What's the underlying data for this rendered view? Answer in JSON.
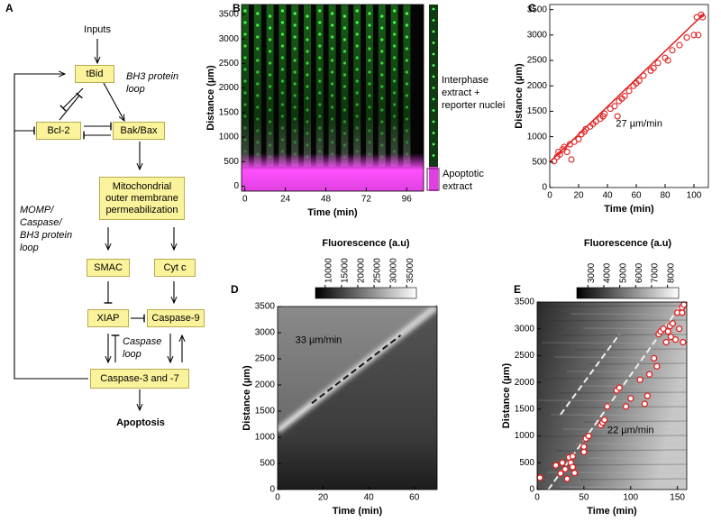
{
  "panel_labels": [
    "A",
    "B",
    "C",
    "D",
    "E"
  ],
  "diagram": {
    "nodes": [
      "Inputs",
      "tBid",
      "Bcl-2",
      "Bak/Bax",
      "Mitochondrial outer membrane permeabilization",
      "SMAC",
      "Cyt c",
      "XIAP",
      "Caspase-9",
      "Caspase-3 and -7",
      "Apoptosis"
    ],
    "loops": [
      "BH3 protein loop",
      "MOMP/ Caspase/ BH3 protein loop",
      "Caspase loop"
    ]
  },
  "chart_data": [
    {
      "type": "image",
      "x_label": "Time (min)",
      "y_label": "Distance (µm)",
      "xlim": [
        -2,
        106
      ],
      "xticks": [
        0,
        24,
        48,
        72,
        96
      ],
      "ylim": [
        -100,
        3700
      ],
      "yticks": [
        0,
        500,
        1000,
        1500,
        2000,
        2500,
        3000,
        3500
      ],
      "annotations": [
        "Interphase extract + reporter nuclei",
        "Apoptotic extract"
      ]
    },
    {
      "type": "scatter",
      "x_label": "Time (min)",
      "y_label": "Distance (µm)",
      "color": "#e02020",
      "xlim": [
        0,
        110
      ],
      "xticks": [
        0,
        20,
        40,
        60,
        80,
        100
      ],
      "ylim": [
        0,
        3600
      ],
      "yticks": [
        0,
        500,
        1000,
        1500,
        2000,
        2500,
        3000,
        3500
      ],
      "x": [
        3,
        5,
        6,
        7,
        9,
        10,
        12,
        15,
        14,
        17,
        20,
        22,
        24,
        25,
        28,
        30,
        32,
        35,
        37,
        38,
        42,
        45,
        47,
        48,
        50,
        52,
        55,
        58,
        60,
        62,
        65,
        70,
        72,
        75,
        80,
        82,
        85,
        90,
        95,
        100,
        102,
        103,
        105,
        106
      ],
      "y": [
        520,
        600,
        700,
        650,
        750,
        800,
        700,
        550,
        850,
        900,
        950,
        1050,
        1100,
        1150,
        1200,
        1250,
        1300,
        1350,
        1400,
        1450,
        1550,
        1600,
        1400,
        1700,
        1750,
        1800,
        1900,
        2000,
        2050,
        2100,
        2200,
        2300,
        2350,
        2450,
        2550,
        2500,
        2700,
        2800,
        2950,
        3000,
        3350,
        3000,
        3400,
        3350
      ],
      "fit": {
        "x": [
          0,
          107
        ],
        "y": [
          500,
          3420
        ]
      },
      "annotation": "27 µm/min"
    },
    {
      "type": "heatmap",
      "x_label": "Time (min)",
      "y_label": "Distance (µm)",
      "colorbar": {
        "label": "Fluorescence (a.u)",
        "lim": [
          7000,
          38000
        ],
        "ticks": [
          10000,
          15000,
          20000,
          25000,
          30000,
          35000
        ]
      },
      "xlim": [
        0,
        70
      ],
      "xticks": [
        0,
        20,
        40,
        60
      ],
      "ylim": [
        0,
        3500
      ],
      "yticks": [
        0,
        500,
        1000,
        1500,
        2000,
        2500,
        3000,
        3500
      ],
      "trend_lines": [
        {
          "x": [
            15,
            54
          ],
          "y": [
            1650,
            2950
          ]
        }
      ],
      "annotation": "33 µm/min"
    },
    {
      "type": "heatmap",
      "x_label": "Time (min)",
      "y_label": "Distance (µm)",
      "color": "#e02020",
      "colorbar": {
        "label": "Fluorescence (a.u)",
        "lim": [
          2300,
          8700
        ],
        "ticks": [
          3000,
          4000,
          5000,
          6000,
          7000,
          8000
        ]
      },
      "xlim": [
        0,
        160
      ],
      "xticks": [
        0,
        50,
        100,
        150
      ],
      "ylim": [
        0,
        3500
      ],
      "yticks": [
        0,
        500,
        1000,
        1500,
        2000,
        2500,
        3000,
        3500
      ],
      "x": [
        3,
        20,
        25,
        27,
        30,
        32,
        34,
        36,
        38,
        38,
        40,
        50,
        50,
        52,
        55,
        68,
        70,
        72,
        75,
        85,
        88,
        95,
        100,
        110,
        115,
        118,
        120,
        125,
        128,
        130,
        132,
        135,
        138,
        140,
        142,
        143,
        145,
        148,
        150,
        152,
        155,
        155,
        156,
        157
      ],
      "y": [
        220,
        450,
        300,
        500,
        380,
        200,
        600,
        500,
        420,
        620,
        310,
        700,
        800,
        950,
        1000,
        1200,
        1250,
        1300,
        1550,
        1850,
        1900,
        1550,
        1700,
        2050,
        1600,
        1750,
        2150,
        2450,
        2300,
        2900,
        2950,
        3000,
        2750,
        2950,
        3050,
        2850,
        3100,
        2800,
        3300,
        3000,
        3400,
        3300,
        2750,
        3450
      ],
      "trend_lines": [
        {
          "x": [
            25,
            88
          ],
          "y": [
            1400,
            2900
          ]
        },
        {
          "x": [
            12,
            152
          ],
          "y": [
            0,
            3400
          ]
        }
      ],
      "annotation": "22 µm/min"
    }
  ]
}
